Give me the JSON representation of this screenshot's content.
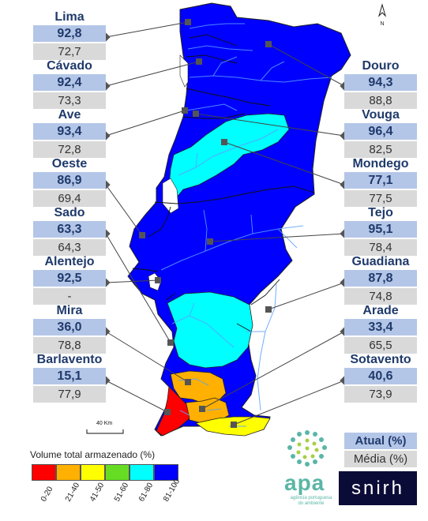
{
  "colors": {
    "c0_20": "#ff0000",
    "c21_40": "#ffb000",
    "c41_50": "#ffff00",
    "c51_60": "#66dd22",
    "c61_80": "#00ffff",
    "c81_100": "#0000ff",
    "label_blue": "#b4c6e7",
    "label_gray": "#d9d9d9"
  },
  "basins": {
    "lima": {
      "name": "Lima",
      "current": "92,8",
      "average": "72,7"
    },
    "cavado": {
      "name": "Cávado",
      "current": "92,4",
      "average": "73,3"
    },
    "ave": {
      "name": "Ave",
      "current": "93,4",
      "average": "72,8"
    },
    "oeste": {
      "name": "Oeste",
      "current": "86,9",
      "average": "69,4"
    },
    "sado": {
      "name": "Sado",
      "current": "63,3",
      "average": "64,3"
    },
    "alentejo": {
      "name": "Alentejo",
      "current": "92,5",
      "average": "-"
    },
    "mira": {
      "name": "Mira",
      "current": "36,0",
      "average": "78,8"
    },
    "barlavento": {
      "name": "Barlavento",
      "current": "15,1",
      "average": "77,9"
    },
    "douro": {
      "name": "Douro",
      "current": "94,3",
      "average": "88,8"
    },
    "vouga": {
      "name": "Vouga",
      "current": "96,4",
      "average": "82,5"
    },
    "mondego": {
      "name": "Mondego",
      "current": "77,1",
      "average": "77,5"
    },
    "tejo": {
      "name": "Tejo",
      "current": "95,1",
      "average": "78,4"
    },
    "guadiana": {
      "name": "Guadiana",
      "current": "87,8",
      "average": "74,8"
    },
    "arade": {
      "name": "Arade",
      "current": "33,4",
      "average": "65,5"
    },
    "sotavento": {
      "name": "Sotavento",
      "current": "40,6",
      "average": "73,9"
    }
  },
  "legend": {
    "title": "Volume total armazenado (%)",
    "labels": [
      "0-20",
      "21-40",
      "41-50",
      "51-60",
      "61-80",
      "81-100"
    ]
  },
  "key": {
    "current_label": "Atual (%)",
    "average_label": "Média (%)"
  },
  "scale_label": "40  Km",
  "compass_label": "N",
  "logos": {
    "apa_text": "apa",
    "apa_sub": "agência portuguesa do ambiente",
    "snirh_text": "snirh"
  }
}
